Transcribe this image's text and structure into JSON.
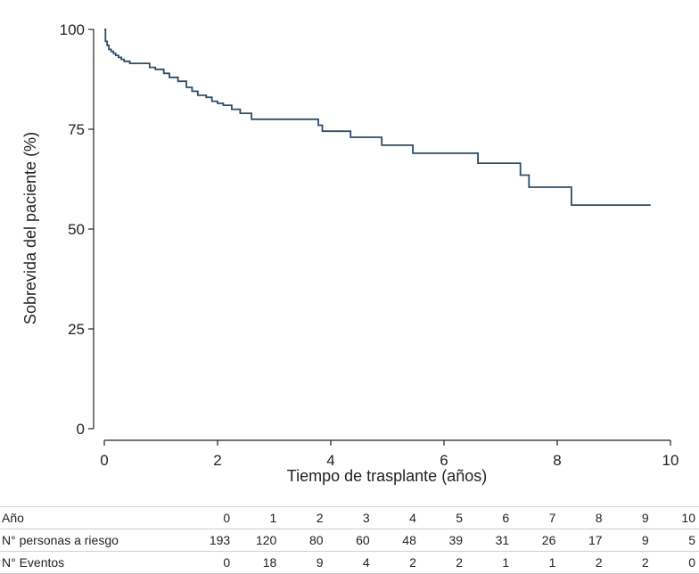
{
  "chart_data": {
    "type": "line",
    "subtype": "kaplan-meier step",
    "xlabel": "Tiempo de trasplante (años)",
    "ylabel": "Sobrevida del paciente (%)",
    "xlim": [
      0,
      10
    ],
    "ylim": [
      0,
      100
    ],
    "xticks": [
      "0",
      "2",
      "4",
      "6",
      "8",
      "10"
    ],
    "yticks": [
      "0",
      "25",
      "50",
      "75",
      "100"
    ],
    "grid": false,
    "color": "#2b4d6b",
    "series": [
      {
        "x": [
          0,
          0.02,
          0.05,
          0.08,
          0.12,
          0.16,
          0.2,
          0.25,
          0.3,
          0.35,
          0.45,
          0.8,
          0.9,
          1.05,
          1.15,
          1.3,
          1.45,
          1.55,
          1.65,
          1.8,
          1.9,
          2.0,
          2.1,
          2.25,
          2.4,
          2.6,
          3.78,
          3.85,
          4.35,
          4.9,
          5.45,
          6.6,
          7.35,
          7.5,
          8.25,
          9.65
        ],
        "y": [
          100,
          97,
          96,
          95,
          94.5,
          94,
          93.5,
          93,
          92.5,
          92,
          91.5,
          90.5,
          90,
          89,
          88,
          87,
          85.5,
          84.5,
          83.5,
          83,
          82,
          81.5,
          81,
          80,
          79,
          77.5,
          76,
          74.5,
          73,
          71,
          69,
          66.5,
          63.5,
          60.5,
          56,
          56
        ]
      }
    ]
  },
  "risk_table": {
    "rows": [
      {
        "label": "Año",
        "values": [
          "0",
          "1",
          "2",
          "3",
          "4",
          "5",
          "6",
          "7",
          "8",
          "9",
          "10"
        ]
      },
      {
        "label": "N° personas a riesgo",
        "values": [
          "193",
          "120",
          "80",
          "60",
          "48",
          "39",
          "31",
          "26",
          "17",
          "9",
          "5"
        ]
      },
      {
        "label": "N° Eventos",
        "values": [
          "0",
          "18",
          "9",
          "4",
          "2",
          "2",
          "1",
          "1",
          "2",
          "2",
          "0"
        ]
      }
    ]
  }
}
